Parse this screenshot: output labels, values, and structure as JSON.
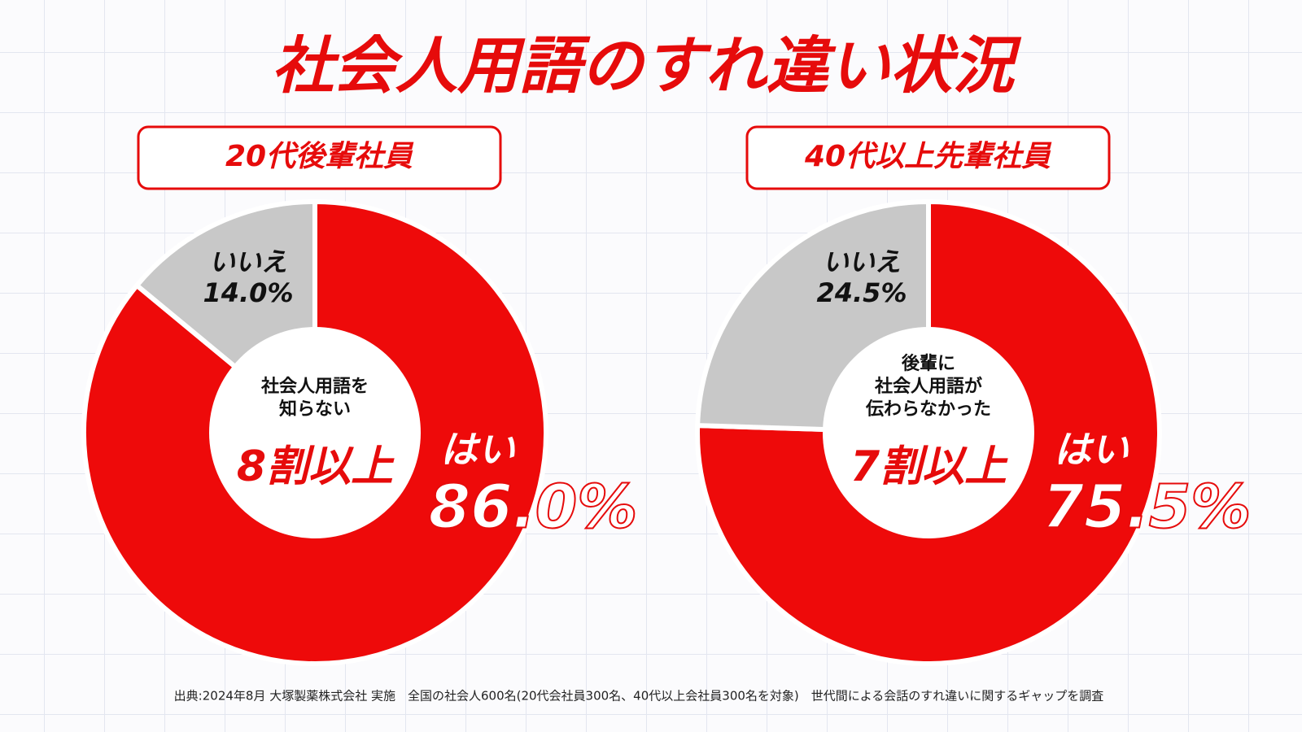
{
  "title": "社会人用語のすれ違い状況",
  "chart_data": [
    {
      "type": "pie",
      "title": "20代後輩社員",
      "categories": [
        "はい",
        "いいえ"
      ],
      "values": [
        86,
        14
      ],
      "value_labels": [
        "86.0%",
        "14.0%"
      ],
      "colors": [
        "#ee0a0a",
        "#c8c8c8"
      ],
      "center_text": [
        "社会人用語を",
        "知らない"
      ],
      "center_highlight": "8割以上"
    },
    {
      "type": "pie",
      "title": "40代以上先輩社員",
      "categories": [
        "はい",
        "いいえ"
      ],
      "values": [
        75.5,
        24.5
      ],
      "value_labels": [
        "75.5%",
        "24.5%"
      ],
      "colors": [
        "#ee0a0a",
        "#c8c8c8"
      ],
      "center_text": [
        "後輩に",
        "社会人用語が",
        "伝わらなかった"
      ],
      "center_highlight": "7割以上"
    }
  ],
  "source": "出典:2024年8月 大塚製薬株式会社 実施　全国の社会人600名(20代会社員300名、40代以上会社員300名を対象)　世代間による会話のすれ違いに関するギャップを調査"
}
